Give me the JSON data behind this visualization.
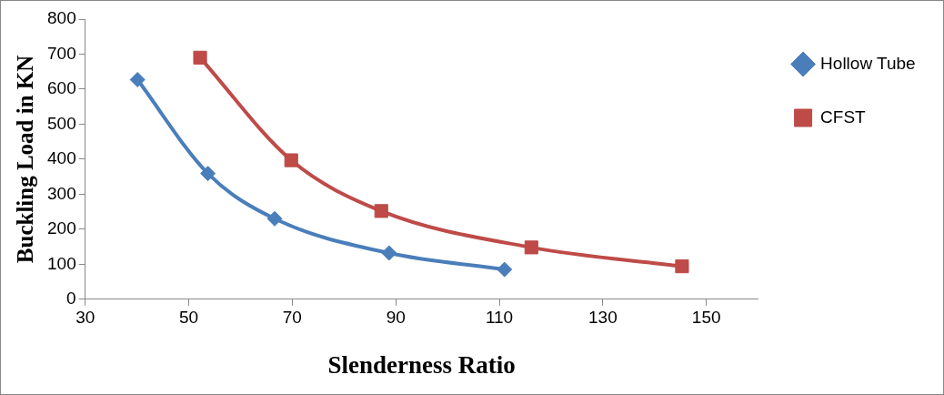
{
  "chart_data": {
    "type": "line",
    "xlabel": "Slenderness Ratio",
    "ylabel": "Buckling Load in KN",
    "xlim": [
      30,
      160
    ],
    "xticks": [
      30,
      50,
      70,
      90,
      110,
      130,
      150
    ],
    "ylim": [
      0,
      800
    ],
    "yticks": [
      0,
      100,
      200,
      300,
      400,
      500,
      600,
      700,
      800
    ],
    "grid": false,
    "legend": "right",
    "series": [
      {
        "name": "Hollow Tube",
        "color": "#4a7ebb",
        "marker": "diamond",
        "x": [
          40.1,
          53.7,
          66.6,
          88.7,
          111
        ],
        "values": [
          627,
          359,
          230,
          132,
          85
        ]
      },
      {
        "name": "CFST",
        "color": "#be4b48",
        "marker": "square",
        "x": [
          52.2,
          69.8,
          87.2,
          116.2,
          145.3
        ],
        "values": [
          690,
          397,
          252,
          148,
          94
        ]
      }
    ]
  }
}
